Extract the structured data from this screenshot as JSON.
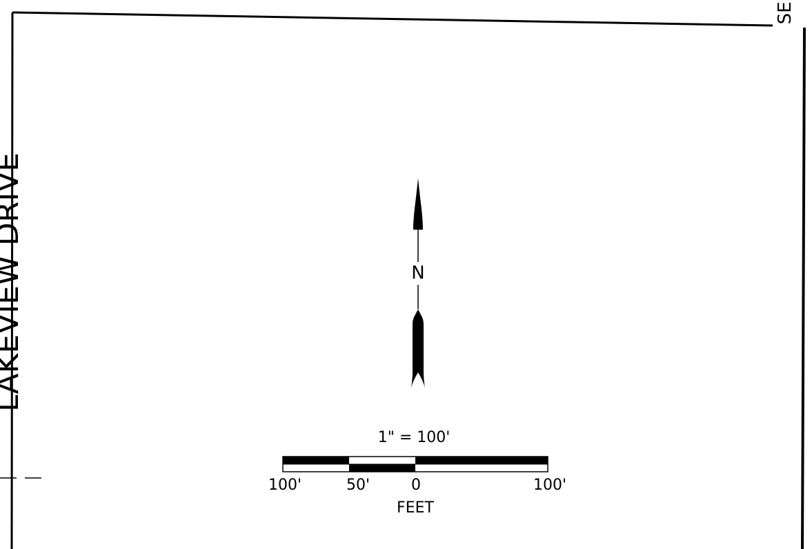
{
  "map": {
    "street_label": "LAKEVIEW DRIVE",
    "corner_label": "SEI",
    "north_label": "N",
    "scale_text": "1\" = 100'",
    "scale_ticks": [
      "100'",
      "50'",
      "0",
      "100'"
    ],
    "scale_units": "FEET",
    "line_color": "#000000",
    "background_color": "#ffffff"
  }
}
